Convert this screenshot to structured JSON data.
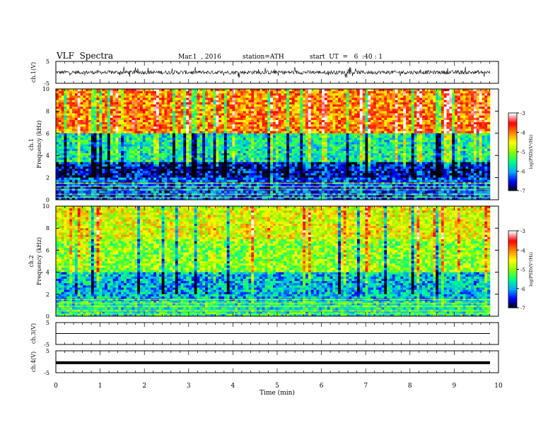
{
  "header": {
    "title": "VLF  Spectra",
    "date": "Mar.1  , 2016",
    "station": "station=ATH",
    "start": "start  UT  =   6  :40 : 1"
  },
  "chart_data": [
    {
      "type": "line",
      "panel": "ch1-waveform",
      "ylabel": "ch.1(V)",
      "ylim": [
        -5,
        5
      ],
      "yticks": [
        "5",
        "-5"
      ],
      "xlim": [
        0,
        10
      ],
      "description_values": "noisy waveform centered near 0 V, typical amplitude about ±1 V with spikes to about ±3 V",
      "amplitude_typical": 1.0,
      "amplitude_spike": 3.0
    },
    {
      "type": "heatmap",
      "panel": "ch1-spectrogram",
      "ylabel": "ch.1\nFrequency  (kHz)",
      "ylim": [
        0,
        10
      ],
      "yticks": [
        "0",
        "2",
        "4",
        "6",
        "8",
        "10"
      ],
      "xlim": [
        0,
        10
      ],
      "colorbar": {
        "label": "log(PSD)(V²/Hz)",
        "ticks": [
          "-3",
          "-4",
          "-5",
          "-6",
          "-7"
        ],
        "range": [
          -7,
          -3
        ]
      },
      "bands": [
        {
          "from_khz": 0,
          "to_khz": 2,
          "logpsd": -6.3
        },
        {
          "from_khz": 2,
          "to_khz": 3.5,
          "logpsd": -6.6
        },
        {
          "from_khz": 3.5,
          "to_khz": 6,
          "logpsd": -5.6
        },
        {
          "from_khz": 6,
          "to_khz": 10,
          "logpsd": -4.0
        }
      ]
    },
    {
      "type": "heatmap",
      "panel": "ch2-spectrogram",
      "ylabel": "ch.2\nFrequency  (kHz)",
      "ylim": [
        0,
        10
      ],
      "yticks": [
        "0",
        "2",
        "4",
        "6",
        "8",
        "10"
      ],
      "xlim": [
        0,
        10
      ],
      "colorbar": {
        "label": "log(PSD)(V²/Hz)",
        "ticks": [
          "-3",
          "-4",
          "-5",
          "-6",
          "-7"
        ],
        "range": [
          -7,
          -3
        ]
      },
      "bands": [
        {
          "from_khz": 0,
          "to_khz": 1.5,
          "logpsd": -5.6
        },
        {
          "from_khz": 1.5,
          "to_khz": 4,
          "logpsd": -5.9
        },
        {
          "from_khz": 4,
          "to_khz": 7,
          "logpsd": -5.0
        },
        {
          "from_khz": 7,
          "to_khz": 10,
          "logpsd": -4.6
        }
      ]
    },
    {
      "type": "line",
      "panel": "ch3-waveform",
      "ylabel": "ch.3(V)",
      "ylim": [
        -5,
        5
      ],
      "yticks": [
        "5",
        "-5"
      ],
      "xlim": [
        0,
        10
      ],
      "constant_value": 0
    },
    {
      "type": "line",
      "panel": "ch4-waveform",
      "ylabel": "ch.4(V)",
      "ylim": [
        -5,
        5
      ],
      "yticks": [
        "5",
        "-5"
      ],
      "xlim": [
        0,
        10
      ],
      "constant_value": -0.5
    }
  ],
  "xaxis": {
    "label": "Time  (min)",
    "ticks": [
      "0",
      "1",
      "2",
      "3",
      "4",
      "5",
      "6",
      "7",
      "8",
      "9",
      "10"
    ]
  },
  "colors": {
    "scale": [
      "#000000",
      "#0000ff",
      "#00aaff",
      "#00ff88",
      "#88ff00",
      "#ffff00",
      "#ff8800",
      "#ff0000",
      "#ffffff"
    ]
  }
}
